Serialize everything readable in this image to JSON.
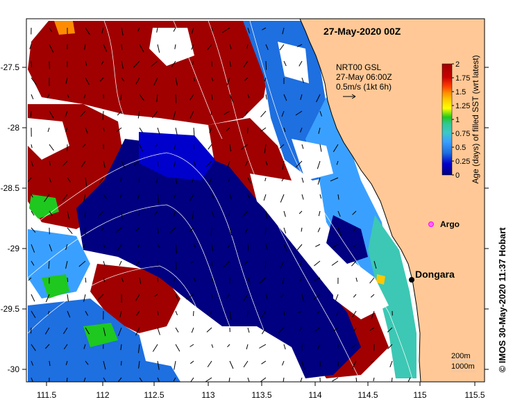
{
  "title": "27-May-2020 00Z",
  "vector_legend": {
    "line1": "NRT00 GSL",
    "line2": "27-May 06:00Z",
    "line3": "0.5m/s (1kt 6h)"
  },
  "colorbar": {
    "label": "Age (days) of filled SST (wrt latest)",
    "ticks": [
      "2",
      "1.75",
      "1.5",
      "1.25",
      "1",
      "0.75",
      "0.5",
      "0.25",
      "0"
    ],
    "range": [
      0,
      2
    ],
    "colors": [
      "#000080",
      "#0000cd",
      "#1e6fe0",
      "#3aa0ff",
      "#3cc8c8",
      "#32c896",
      "#1ec81e",
      "#a0e000",
      "#ffff00",
      "#ffc800",
      "#ff8c00",
      "#ff3c00",
      "#c80000",
      "#a00000"
    ]
  },
  "axes": {
    "lon_ticks": [
      "111.5",
      "112",
      "112.5",
      "113",
      "113.5",
      "114",
      "114.5",
      "115",
      "115.5"
    ],
    "lat_ticks": [
      "-27.5",
      "-28",
      "-28.5",
      "-29",
      "-29.5",
      "-30"
    ],
    "lon_range": [
      111.3,
      115.6
    ],
    "lat_range": [
      -27.1,
      -30.1
    ]
  },
  "places": {
    "argo_label": "Argo",
    "argo_color": "#ff00ff",
    "dongara_label": "Dongara"
  },
  "depth_legend": {
    "line1": "200m",
    "line2": "1000m"
  },
  "credit": "© IMOS 30-May-2020 11:37 Hobart",
  "colors": {
    "land": "#ffc896",
    "no_data": "#ffffff",
    "dark_red": "#a00000",
    "navy": "#000080"
  }
}
